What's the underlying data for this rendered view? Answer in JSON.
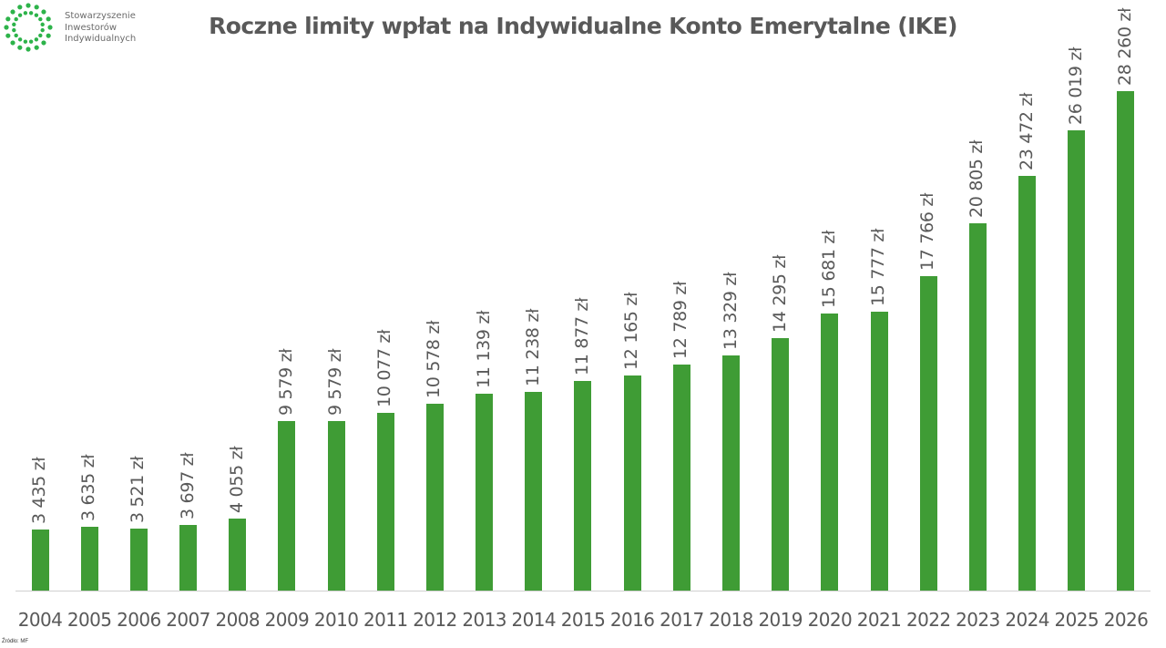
{
  "logo": {
    "icon": "dotted-circle-logo-icon",
    "lines": [
      "Stowarzyszenie",
      "Inwestorów",
      "Indywidualnych"
    ],
    "color": "#2db34a"
  },
  "title": "Roczne limity wpłat na Indywidualne Konto Emerytalne (IKE)",
  "source": "Źródło: MF",
  "bar_color": "#3f9c35",
  "chart_data": {
    "type": "bar",
    "title": "Roczne limity wpłat na Indywidualne Konto Emerytalne (IKE)",
    "xlabel": "",
    "ylabel": "",
    "categories": [
      "2004",
      "2005",
      "2006",
      "2007",
      "2008",
      "2009",
      "2010",
      "2011",
      "2012",
      "2013",
      "2014",
      "2015",
      "2016",
      "2017",
      "2018",
      "2019",
      "2020",
      "2021",
      "2022",
      "2023",
      "2024",
      "2025",
      "2026"
    ],
    "values": [
      3435,
      3635,
      3521,
      3697,
      4055,
      9579,
      9579,
      10077,
      10578,
      11139,
      11238,
      11877,
      12165,
      12789,
      13329,
      14295,
      15681,
      15777,
      17766,
      20805,
      23472,
      26019,
      28260
    ],
    "labels": [
      "3 435 zł",
      "3 635 zł",
      "3 521 zł",
      "3 697 zł",
      "4 055 zł",
      "9 579 zł",
      "9 579 zł",
      "10 077 zł",
      "10 578 zł",
      "11 139 zł",
      "11 238 zł",
      "11 877 zł",
      "12 165 zł",
      "12 789 zł",
      "13 329 zł",
      "14 295 zł",
      "15 681 zł",
      "15 777 zł",
      "17 766 zł",
      "20 805 zł",
      "23 472 zł",
      "26 019 zł",
      "28 260 zł"
    ],
    "unit": "zł",
    "ylim": [
      0,
      28260
    ],
    "grid": false,
    "legend": null,
    "data_labels": "rotated-vertical-above-bars",
    "source": "Źródło: MF"
  }
}
